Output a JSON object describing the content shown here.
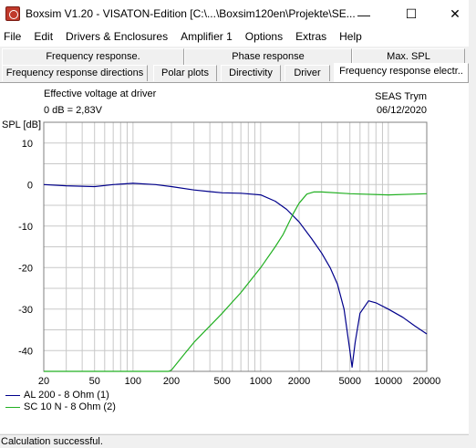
{
  "window": {
    "title": "Boxsim V1.20 - VISATON-Edition [C:\\...\\Boxsim120en\\Projekte\\SE...",
    "minimize": "—",
    "maximize": "☐",
    "close": "✕"
  },
  "menu": [
    "File",
    "Edit",
    "Drivers & Enclosures",
    "Amplifier 1",
    "Options",
    "Extras",
    "Help"
  ],
  "tabs_row1": [
    "Frequency response.",
    "Phase response",
    "Max. SPL"
  ],
  "tabs_row2": [
    "Frequency response directions",
    "Polar plots",
    "Directivity",
    "Driver",
    "Frequency response electr.."
  ],
  "active_tab": "Frequency response electr..",
  "header": {
    "left_line1": "Effective voltage at driver",
    "left_line2": "0 dB = 2,83V",
    "right_line1": "SEAS Trym",
    "right_line2": "06/12/2020"
  },
  "chart_data": {
    "type": "line",
    "ylabel": "SPL [dB]",
    "xscale": "log",
    "xlim": [
      20,
      20000
    ],
    "ylim": [
      -45,
      15
    ],
    "xticks": [
      20,
      50,
      100,
      200,
      500,
      1000,
      2000,
      5000,
      10000,
      20000
    ],
    "xtick_labels": [
      "20",
      "50",
      "100",
      "200",
      "500",
      "1000",
      "2000",
      "5000",
      "10000",
      "20000"
    ],
    "yticks": [
      10,
      0,
      -10,
      -20,
      -30,
      -40
    ],
    "ytick_labels": [
      "10",
      "0",
      "-10",
      "-20",
      "-30",
      "-40"
    ],
    "grid": true,
    "series": [
      {
        "name": "AL 200 - 8 Ohm (1)",
        "color": "#00008b",
        "x": [
          20,
          30,
          50,
          70,
          100,
          150,
          200,
          300,
          400,
          500,
          700,
          1000,
          1300,
          1600,
          2000,
          2500,
          3000,
          3500,
          4000,
          4500,
          5000,
          5200,
          5500,
          6000,
          7000,
          8000,
          10000,
          13000,
          16000,
          20000
        ],
        "y": [
          0,
          -0.3,
          -0.5,
          0,
          0.3,
          0,
          -0.5,
          -1.3,
          -1.7,
          -2,
          -2.1,
          -2.5,
          -4,
          -6,
          -9,
          -13,
          -16.5,
          -20,
          -24,
          -30,
          -40,
          -44,
          -38,
          -31,
          -28,
          -28.5,
          -30,
          -32,
          -34,
          -36
        ]
      },
      {
        "name": "SC 10 N - 8 Ohm (2)",
        "color": "#22b022",
        "x": [
          20,
          50,
          100,
          150,
          190,
          200,
          250,
          300,
          500,
          700,
          1000,
          1300,
          1500,
          1800,
          2000,
          2300,
          2600,
          3000,
          5000,
          10000,
          20000
        ],
        "y": [
          -45,
          -45,
          -45,
          -45,
          -45,
          -44.7,
          -41,
          -38,
          -31,
          -26,
          -20,
          -15,
          -12,
          -7,
          -4.5,
          -2.3,
          -1.8,
          -1.8,
          -2.2,
          -2.5,
          -2.2
        ]
      }
    ]
  },
  "status": "Calculation successful."
}
